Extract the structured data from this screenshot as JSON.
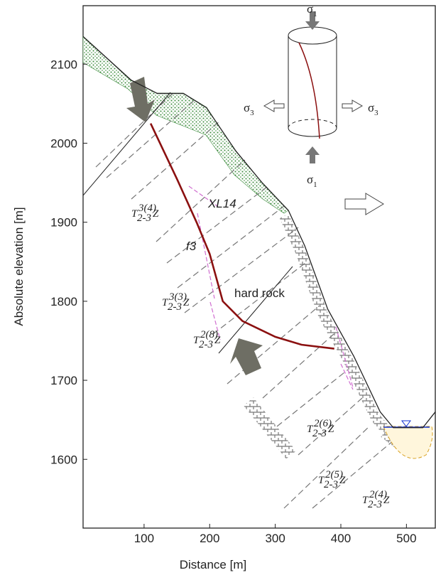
{
  "chart_data": {
    "type": "cross-section",
    "x_label": "Distance [m]",
    "y_label": "Absolute elevation [m]",
    "xlim": [
      7,
      544
    ],
    "ylim": [
      1513,
      2174
    ],
    "xticks": [
      100,
      200,
      300,
      400,
      500
    ],
    "yticks": [
      1600,
      1700,
      1800,
      1900,
      2000,
      2100
    ],
    "ground": {
      "color": "#222222",
      "x": [
        7,
        80,
        120,
        160,
        195,
        240,
        280,
        320,
        345,
        380,
        420,
        460,
        480,
        525,
        544
      ],
      "y": [
        2135,
        2080,
        2063,
        2063,
        2045,
        1990,
        1950,
        1915,
        1870,
        1790,
        1730,
        1660,
        1640,
        1640,
        1660
      ]
    },
    "slip_surface": {
      "color": "#8b1010",
      "x": [
        110,
        150,
        180,
        200,
        220,
        250,
        300,
        340,
        390
      ],
      "y": [
        2025,
        1955,
        1900,
        1860,
        1800,
        1775,
        1755,
        1745,
        1740
      ]
    },
    "annotations": [
      "XL14",
      "f3",
      "hard rock"
    ],
    "stresses": [
      {
        "symbol": "σ",
        "sub": "1"
      },
      {
        "symbol": "σ",
        "sub": "3"
      },
      {
        "symbol": "σ",
        "sub": "3"
      },
      {
        "symbol": "σ",
        "sub": "1"
      }
    ],
    "strata": [
      {
        "main": "T",
        "sup": "3(4)",
        "sub": "2-3",
        "end": "Z"
      },
      {
        "main": "T",
        "sup": "3(3)",
        "sub": "2-3",
        "end": "Z"
      },
      {
        "main": "T",
        "sup": "2(8)",
        "sub": "2-3",
        "end": "Z"
      },
      {
        "main": "T",
        "sup": "2(6)",
        "sub": "2-3",
        "end": "Z"
      },
      {
        "main": "T",
        "sup": "2(5)",
        "sub": "2-3",
        "end": "Z"
      },
      {
        "main": "T",
        "sup": "2(4)",
        "sub": "2-3",
        "end": "Z"
      }
    ]
  }
}
